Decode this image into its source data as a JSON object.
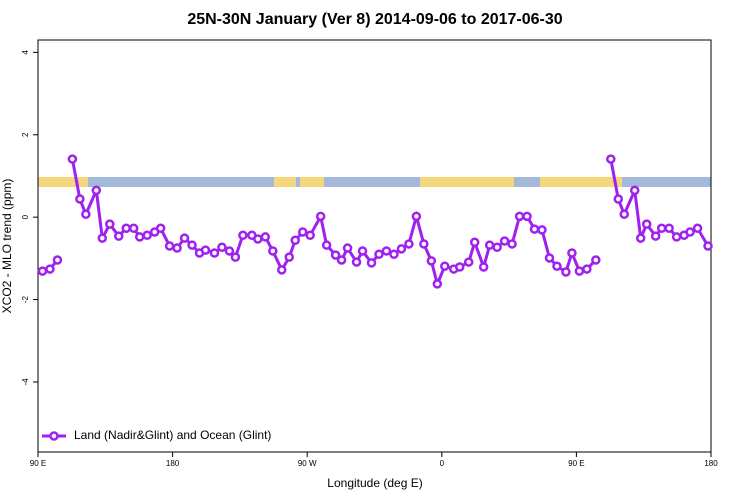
{
  "chart_data": {
    "type": "line",
    "title": "25N-30N January (Ver 8)   2014-09-06 to 2017-06-30",
    "x_label": "Longitude (deg E)",
    "y_label": "XCO2 - MLO trend (ppm)",
    "xlim": [
      90,
      540
    ],
    "xticks": [
      {
        "value": 90,
        "label": "90 E"
      },
      {
        "value": 180,
        "label": "180"
      },
      {
        "value": 270,
        "label": "90 W"
      },
      {
        "value": 360,
        "label": "0"
      },
      {
        "value": 450,
        "label": "90 E"
      },
      {
        "value": 540,
        "label": "180"
      }
    ],
    "ylim": [
      -5.7,
      4.3
    ],
    "yticks": [
      -4,
      -2,
      0,
      2,
      4
    ],
    "legend": "bottom-left",
    "x": [
      93,
      98,
      103,
      108,
      113,
      118,
      122,
      129,
      133,
      138,
      144,
      149,
      154,
      158,
      163,
      168,
      172,
      178,
      183,
      188,
      193,
      198,
      202,
      208,
      213,
      218,
      222,
      227,
      233,
      237,
      242,
      247,
      253,
      258,
      262,
      267,
      272,
      279,
      283,
      289,
      293,
      297,
      303,
      307,
      313,
      318,
      323,
      328,
      333,
      338,
      343,
      348,
      353,
      357,
      362,
      368,
      372,
      378,
      382,
      388,
      392,
      397,
      402,
      407,
      412,
      417,
      422,
      427,
      432,
      437,
      443,
      447,
      452,
      457,
      463,
      468,
      473,
      478,
      482,
      489,
      493,
      497,
      503,
      507,
      512,
      517,
      522,
      526,
      531,
      538
    ],
    "series": [
      {
        "name": "Land (Nadir&Glint) and Ocean (Glint)",
        "color": "#a020f0",
        "values": [
          -1.31,
          -1.26,
          -1.04,
          null,
          1.41,
          0.44,
          0.07,
          0.65,
          -0.51,
          -0.17,
          -0.46,
          -0.27,
          -0.27,
          -0.48,
          -0.44,
          -0.36,
          -0.27,
          -0.7,
          -0.75,
          -0.51,
          -0.68,
          -0.87,
          -0.8,
          -0.87,
          -0.73,
          -0.82,
          -0.97,
          -0.44,
          -0.44,
          -0.53,
          -0.48,
          -0.82,
          -1.28,
          -0.97,
          -0.56,
          -0.36,
          -0.44,
          0.02,
          -0.68,
          -0.92,
          -1.04,
          -0.75,
          -1.09,
          -0.82,
          -1.11,
          -0.9,
          -0.82,
          -0.9,
          -0.77,
          -0.65,
          0.02,
          -0.65,
          -1.06,
          -1.62,
          -1.19,
          -1.26,
          -1.21,
          -1.09,
          -0.61,
          -1.21,
          -0.68,
          -0.73,
          -0.58,
          -0.65,
          0.02,
          0.02,
          -0.29,
          -0.31,
          -0.99,
          -1.19,
          -1.33,
          -0.87,
          -1.31,
          -1.26,
          -1.04,
          null,
          1.41,
          0.44,
          0.07,
          0.65,
          -0.51,
          -0.17,
          -0.46,
          -0.27,
          -0.27,
          -0.48,
          -0.44,
          -0.36,
          -0.27,
          -0.7
        ]
      }
    ]
  }
}
